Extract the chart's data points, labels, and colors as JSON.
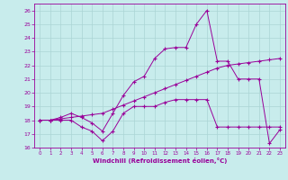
{
  "xlabel": "Windchill (Refroidissement éolien,°C)",
  "bg_color": "#c8ecec",
  "grid_color": "#aad4d4",
  "line_color": "#990099",
  "xlim": [
    -0.5,
    23.5
  ],
  "ylim": [
    16,
    26.5
  ],
  "yticks": [
    16,
    17,
    18,
    19,
    20,
    21,
    22,
    23,
    24,
    25,
    26
  ],
  "xticks": [
    0,
    1,
    2,
    3,
    4,
    5,
    6,
    7,
    8,
    9,
    10,
    11,
    12,
    13,
    14,
    15,
    16,
    17,
    18,
    19,
    20,
    21,
    22,
    23
  ],
  "line1_x": [
    0,
    1,
    2,
    3,
    4,
    5,
    6,
    7,
    8,
    9,
    10,
    11,
    12,
    13,
    14,
    15,
    16,
    17,
    18,
    19,
    20,
    21,
    22,
    23
  ],
  "line1_y": [
    18,
    18,
    18,
    18,
    17.5,
    17.2,
    16.5,
    17.2,
    18.5,
    19.0,
    19.0,
    19.0,
    19.3,
    19.5,
    19.5,
    19.5,
    19.5,
    17.5,
    17.5,
    17.5,
    17.5,
    17.5,
    17.5,
    17.5
  ],
  "line2_x": [
    0,
    1,
    2,
    3,
    4,
    5,
    6,
    7,
    8,
    9,
    10,
    11,
    12,
    13,
    14,
    15,
    16,
    17,
    18,
    19,
    20,
    21,
    22,
    23
  ],
  "line2_y": [
    18,
    18,
    18.1,
    18.2,
    18.3,
    18.4,
    18.5,
    18.8,
    19.1,
    19.4,
    19.7,
    20.0,
    20.3,
    20.6,
    20.9,
    21.2,
    21.5,
    21.8,
    22.0,
    22.1,
    22.2,
    22.3,
    22.4,
    22.5
  ],
  "line3_x": [
    0,
    1,
    2,
    3,
    4,
    5,
    6,
    7,
    8,
    9,
    10,
    11,
    12,
    13,
    14,
    15,
    16,
    17,
    18,
    19,
    20,
    21,
    22,
    23
  ],
  "line3_y": [
    18,
    18,
    18.2,
    18.5,
    18.2,
    17.8,
    17.2,
    18.5,
    19.8,
    20.8,
    21.2,
    22.5,
    23.2,
    23.3,
    23.3,
    25.0,
    26.0,
    22.3,
    22.3,
    21.0,
    21.0,
    21.0,
    16.3,
    17.3
  ]
}
